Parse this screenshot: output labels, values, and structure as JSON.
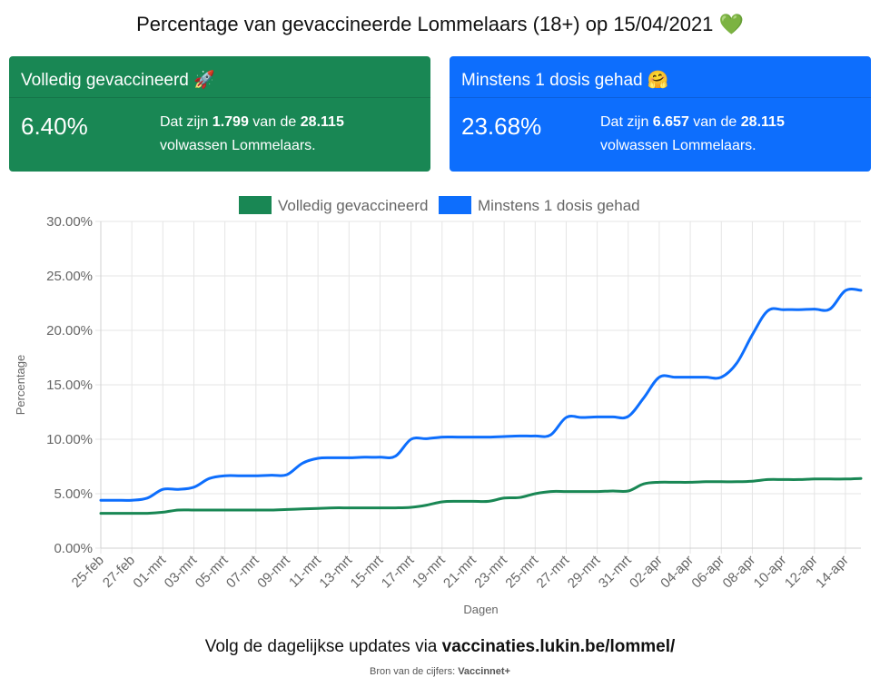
{
  "title": "Percentage van gevaccineerde Lommelaars (18+) op 15/04/2021 💚",
  "cards": [
    {
      "header": "Volledig gevaccineerd 🚀",
      "percentage": "6.40%",
      "text_prefix": "Dat zijn ",
      "count": "1.799",
      "text_mid": " van de ",
      "total": "28.115",
      "text_suffix": "volwassen Lommelaars.",
      "color": "#198754"
    },
    {
      "header": "Minstens 1 dosis gehad 🤗",
      "percentage": "23.68%",
      "text_prefix": "Dat zijn ",
      "count": "6.657",
      "text_mid": " van de ",
      "total": "28.115",
      "text_suffix": "volwassen Lommelaars.",
      "color": "#0d6efd"
    }
  ],
  "chart_data": {
    "type": "line",
    "xlabel": "Dagen",
    "ylabel": "Percentage",
    "ylim": [
      0,
      30
    ],
    "y_ticks": [
      "0.00%",
      "5.00%",
      "10.00%",
      "15.00%",
      "20.00%",
      "25.00%",
      "30.00%"
    ],
    "legend_position": "top",
    "grid": true,
    "x": [
      "25-feb",
      "26-feb",
      "27-feb",
      "28-feb",
      "01-mrt",
      "02-mrt",
      "03-mrt",
      "04-mrt",
      "05-mrt",
      "06-mrt",
      "07-mrt",
      "08-mrt",
      "09-mrt",
      "10-mrt",
      "11-mrt",
      "12-mrt",
      "13-mrt",
      "14-mrt",
      "15-mrt",
      "16-mrt",
      "17-mrt",
      "18-mrt",
      "19-mrt",
      "20-mrt",
      "21-mrt",
      "22-mrt",
      "23-mrt",
      "24-mrt",
      "25-mrt",
      "26-mrt",
      "27-mrt",
      "28-mrt",
      "29-mrt",
      "30-mrt",
      "31-mrt",
      "01-apr",
      "02-apr",
      "03-apr",
      "04-apr",
      "05-apr",
      "06-apr",
      "07-apr",
      "08-apr",
      "09-apr",
      "10-apr",
      "11-apr",
      "12-apr",
      "13-apr",
      "14-apr",
      "15-apr"
    ],
    "x_tick_labels": [
      "25-feb",
      "27-feb",
      "01-mrt",
      "03-mrt",
      "05-mrt",
      "07-mrt",
      "09-mrt",
      "11-mrt",
      "13-mrt",
      "15-mrt",
      "17-mrt",
      "19-mrt",
      "21-mrt",
      "23-mrt",
      "25-mrt",
      "27-mrt",
      "29-mrt",
      "31-mrt",
      "02-apr",
      "04-apr",
      "06-apr",
      "08-apr",
      "10-apr",
      "12-apr",
      "14-apr"
    ],
    "series": [
      {
        "name": "Volledig gevaccineerd",
        "color": "#198754",
        "values": [
          3.2,
          3.2,
          3.2,
          3.2,
          3.3,
          3.5,
          3.5,
          3.5,
          3.5,
          3.5,
          3.5,
          3.5,
          3.55,
          3.6,
          3.65,
          3.7,
          3.7,
          3.7,
          3.7,
          3.7,
          3.75,
          3.95,
          4.25,
          4.3,
          4.3,
          4.3,
          4.6,
          4.65,
          5.0,
          5.2,
          5.2,
          5.2,
          5.2,
          5.25,
          5.25,
          5.9,
          6.05,
          6.05,
          6.05,
          6.1,
          6.1,
          6.1,
          6.15,
          6.3,
          6.3,
          6.3,
          6.35,
          6.35,
          6.35,
          6.4
        ]
      },
      {
        "name": "Minstens 1 dosis gehad",
        "color": "#0d6efd",
        "values": [
          4.4,
          4.4,
          4.4,
          4.6,
          5.4,
          5.4,
          5.6,
          6.4,
          6.65,
          6.65,
          6.65,
          6.7,
          6.75,
          7.8,
          8.25,
          8.3,
          8.3,
          8.35,
          8.35,
          8.45,
          10.0,
          10.05,
          10.2,
          10.2,
          10.2,
          10.2,
          10.25,
          10.3,
          10.3,
          10.4,
          12.0,
          12.0,
          12.05,
          12.05,
          12.1,
          13.8,
          15.7,
          15.7,
          15.7,
          15.7,
          15.7,
          17.0,
          19.6,
          21.8,
          21.9,
          21.9,
          21.95,
          21.95,
          23.65,
          23.68
        ]
      }
    ]
  },
  "footer": {
    "text": "Volg de dagelijkse updates via ",
    "link": "vaccinaties.lukin.be/lommel/",
    "source_label": "Bron van de cijfers: ",
    "source_name": "Vaccinnet+"
  }
}
